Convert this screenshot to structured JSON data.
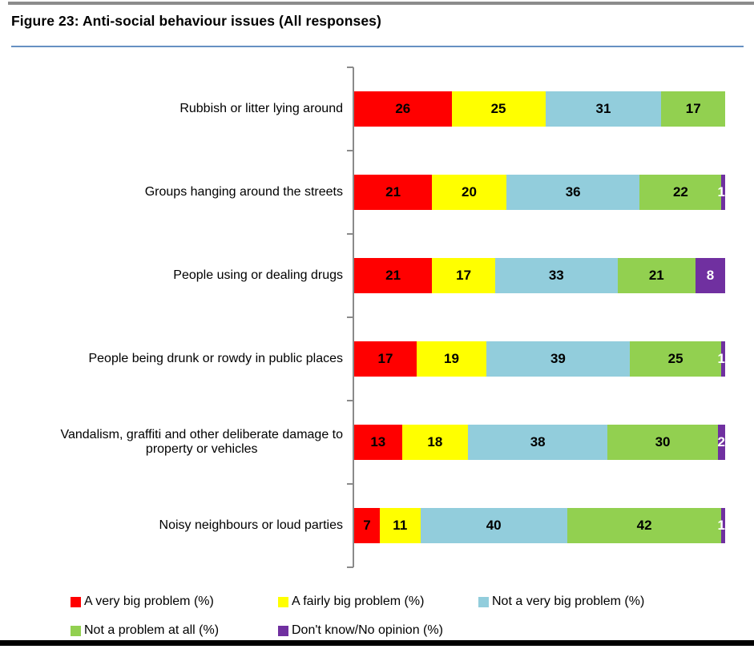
{
  "page": {
    "title": "Figure 23: Anti-social behaviour issues (All responses)"
  },
  "chart_data": {
    "type": "bar",
    "subtype": "stacked-horizontal-100pct",
    "title": "Figure 23: Anti-social behaviour issues (All responses)",
    "categories": [
      "Rubbish or litter lying around",
      "Groups hanging around the streets",
      "People using or dealing drugs",
      "People being drunk or rowdy in public places",
      "Vandalism, graffiti and other deliberate damage to\nproperty or vehicles",
      "Noisy neighbours or loud parties"
    ],
    "series": [
      {
        "name": "A very big problem (%)",
        "color": "#ff0000",
        "label_color": "#000000",
        "values": [
          26,
          21,
          21,
          17,
          13,
          7
        ]
      },
      {
        "name": "A fairly big problem (%)",
        "color": "#ffff00",
        "label_color": "#000000",
        "values": [
          25,
          20,
          17,
          19,
          18,
          11
        ]
      },
      {
        "name": "Not a very big problem (%)",
        "color": "#92cddc",
        "label_color": "#000000",
        "values": [
          31,
          36,
          33,
          39,
          38,
          40
        ]
      },
      {
        "name": "Not a problem at all (%)",
        "color": "#92d050",
        "label_color": "#000000",
        "values": [
          17,
          22,
          21,
          25,
          30,
          42
        ]
      },
      {
        "name": "Don't know/No opinion (%)",
        "color": "#7030a0",
        "label_color": "#ffffff",
        "values": [
          0,
          1,
          8,
          1,
          2,
          1
        ]
      }
    ],
    "value_labels_shown": true,
    "xaxis": {
      "shown": false
    },
    "grid": false,
    "legend_position": "bottom",
    "legend_rows": [
      [
        0,
        1,
        2
      ],
      [
        3,
        4
      ]
    ],
    "accent_rule_color": "#6690c2"
  }
}
